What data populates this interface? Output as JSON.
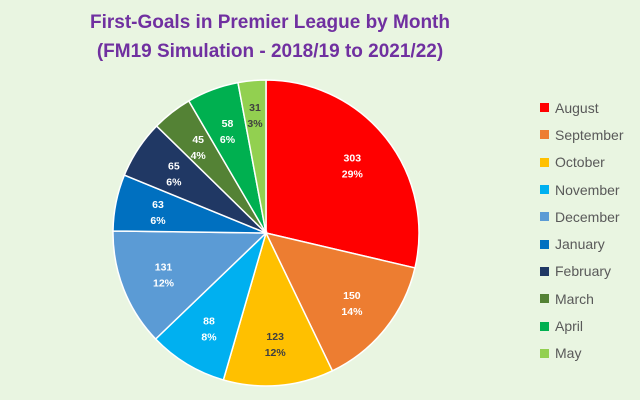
{
  "chart_data": {
    "type": "pie",
    "title": "First-Goals in Premier League by Month",
    "subtitle": "(FM19 Simulation - 2018/19 to 2021/22)",
    "slices": [
      {
        "label": "August",
        "value": 303,
        "percent": "29%",
        "color": "#ff0000"
      },
      {
        "label": "September",
        "value": 150,
        "percent": "14%",
        "color": "#ed7d31"
      },
      {
        "label": "October",
        "value": 123,
        "percent": "12%",
        "color": "#ffc000"
      },
      {
        "label": "November",
        "value": 88,
        "percent": "8%",
        "color": "#00b0f0"
      },
      {
        "label": "December",
        "value": 131,
        "percent": "12%",
        "color": "#5b9bd5"
      },
      {
        "label": "January",
        "value": 63,
        "percent": "6%",
        "color": "#0070c0"
      },
      {
        "label": "February",
        "value": 65,
        "percent": "6%",
        "color": "#203864"
      },
      {
        "label": "March",
        "value": 45,
        "percent": "4%",
        "color": "#548235"
      },
      {
        "label": "April",
        "value": 58,
        "percent": "6%",
        "color": "#00b050"
      },
      {
        "label": "May",
        "value": 31,
        "percent": "3%",
        "color": "#92d050"
      }
    ],
    "legend_position": "right"
  }
}
